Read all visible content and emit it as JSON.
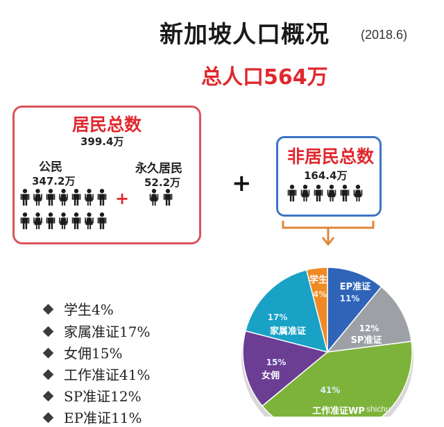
{
  "header": {
    "title": "新加坡人口概况",
    "date": "(2018.6)",
    "total": "总人口564万"
  },
  "residents": {
    "heading": "居民总数",
    "total": "399.4万",
    "citizens_label": "公民",
    "citizens_value": "347.2万",
    "pr_label": "永久居民",
    "pr_value": "52.2万",
    "plus": "+"
  },
  "plus_between": "+",
  "non_residents": {
    "heading": "非居民总数",
    "total": "164.4万"
  },
  "colors": {
    "title_red": "#e0282e",
    "resident_border": "#d9545a",
    "nonresident_border": "#3d74c4",
    "arrow": "#e0853a"
  },
  "legend": [
    "学生4%",
    "家属准证17%",
    "女佣15%",
    "工作准证41%",
    "SP准证12%",
    "EP准证11%"
  ],
  "chart_data": {
    "type": "pie",
    "slices": [
      {
        "label": "EP准证",
        "pct_text": "11%",
        "value": 11,
        "color": "#2f64b8"
      },
      {
        "label": "SP准证",
        "pct_text": "12%",
        "value": 12,
        "color": "#9da1a6"
      },
      {
        "label": "工作准证WP",
        "pct_text": "41%",
        "value": 41,
        "color": "#7db33a"
      },
      {
        "label": "女佣",
        "pct_text": "15%",
        "value": 15,
        "color": "#6b3d93"
      },
      {
        "label": "家属准证",
        "pct_text": "17%",
        "value": 17,
        "color": "#19a2c6"
      },
      {
        "label": "学生",
        "pct_text": "4%",
        "value": 4,
        "color": "#f08a24"
      }
    ]
  },
  "watermark": "shichu"
}
